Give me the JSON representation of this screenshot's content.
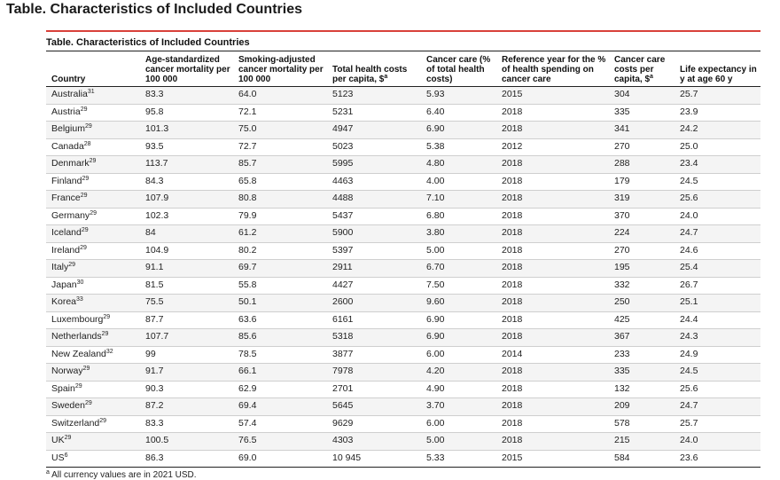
{
  "page_heading": "Table.  Characteristics of Included Countries",
  "table": {
    "caption": "Table. Characteristics of Included Countries",
    "accent_color": "#d9413a",
    "columns": [
      {
        "label": "Country",
        "sup": ""
      },
      {
        "label": "Age-standardized cancer mortality per 100 000",
        "sup": ""
      },
      {
        "label": "Smoking-adjusted cancer mortality per 100 000",
        "sup": ""
      },
      {
        "label": "Total health costs per capita, $",
        "sup": "a"
      },
      {
        "label": "Cancer care (% of total health costs)",
        "sup": ""
      },
      {
        "label": "Reference year for the % of health spending on cancer care",
        "sup": ""
      },
      {
        "label": "Cancer care costs per capita, $",
        "sup": "a"
      },
      {
        "label": "Life expectancy in y at age 60 y",
        "sup": ""
      }
    ],
    "rows": [
      {
        "country": "Australia",
        "ref": "31",
        "mort": "83.3",
        "smoke": "64.0",
        "total": "5123",
        "pct": "5.93",
        "year": "2015",
        "cancer_cost": "304",
        "life": "25.7"
      },
      {
        "country": "Austria",
        "ref": "29",
        "mort": "95.8",
        "smoke": "72.1",
        "total": "5231",
        "pct": "6.40",
        "year": "2018",
        "cancer_cost": "335",
        "life": "23.9"
      },
      {
        "country": "Belgium",
        "ref": "29",
        "mort": "101.3",
        "smoke": "75.0",
        "total": "4947",
        "pct": "6.90",
        "year": "2018",
        "cancer_cost": "341",
        "life": "24.2"
      },
      {
        "country": "Canada",
        "ref": "28",
        "mort": "93.5",
        "smoke": "72.7",
        "total": "5023",
        "pct": "5.38",
        "year": "2012",
        "cancer_cost": "270",
        "life": "25.0"
      },
      {
        "country": "Denmark",
        "ref": "29",
        "mort": "113.7",
        "smoke": "85.7",
        "total": "5995",
        "pct": "4.80",
        "year": "2018",
        "cancer_cost": "288",
        "life": "23.4"
      },
      {
        "country": "Finland",
        "ref": "29",
        "mort": "84.3",
        "smoke": "65.8",
        "total": "4463",
        "pct": "4.00",
        "year": "2018",
        "cancer_cost": "179",
        "life": "24.5"
      },
      {
        "country": "France",
        "ref": "29",
        "mort": "107.9",
        "smoke": "80.8",
        "total": "4488",
        "pct": "7.10",
        "year": "2018",
        "cancer_cost": "319",
        "life": "25.6"
      },
      {
        "country": "Germany",
        "ref": "29",
        "mort": "102.3",
        "smoke": "79.9",
        "total": "5437",
        "pct": "6.80",
        "year": "2018",
        "cancer_cost": "370",
        "life": "24.0"
      },
      {
        "country": "Iceland",
        "ref": "29",
        "mort": "84",
        "smoke": "61.2",
        "total": "5900",
        "pct": "3.80",
        "year": "2018",
        "cancer_cost": "224",
        "life": "24.7"
      },
      {
        "country": "Ireland",
        "ref": "29",
        "mort": "104.9",
        "smoke": "80.2",
        "total": "5397",
        "pct": "5.00",
        "year": "2018",
        "cancer_cost": "270",
        "life": "24.6"
      },
      {
        "country": "Italy",
        "ref": "29",
        "mort": "91.1",
        "smoke": "69.7",
        "total": "2911",
        "pct": "6.70",
        "year": "2018",
        "cancer_cost": "195",
        "life": "25.4"
      },
      {
        "country": "Japan",
        "ref": "30",
        "mort": "81.5",
        "smoke": "55.8",
        "total": "4427",
        "pct": "7.50",
        "year": "2018",
        "cancer_cost": "332",
        "life": "26.7"
      },
      {
        "country": "Korea",
        "ref": "33",
        "mort": "75.5",
        "smoke": "50.1",
        "total": "2600",
        "pct": "9.60",
        "year": "2018",
        "cancer_cost": "250",
        "life": "25.1"
      },
      {
        "country": "Luxembourg",
        "ref": "29",
        "mort": "87.7",
        "smoke": "63.6",
        "total": "6161",
        "pct": "6.90",
        "year": "2018",
        "cancer_cost": "425",
        "life": "24.4"
      },
      {
        "country": "Netherlands",
        "ref": "29",
        "mort": "107.7",
        "smoke": "85.6",
        "total": "5318",
        "pct": "6.90",
        "year": "2018",
        "cancer_cost": "367",
        "life": "24.3"
      },
      {
        "country": "New Zealand",
        "ref": "32",
        "mort": "99",
        "smoke": "78.5",
        "total": "3877",
        "pct": "6.00",
        "year": "2014",
        "cancer_cost": "233",
        "life": "24.9"
      },
      {
        "country": "Norway",
        "ref": "29",
        "mort": "91.7",
        "smoke": "66.1",
        "total": "7978",
        "pct": "4.20",
        "year": "2018",
        "cancer_cost": "335",
        "life": "24.5"
      },
      {
        "country": "Spain",
        "ref": "29",
        "mort": "90.3",
        "smoke": "62.9",
        "total": "2701",
        "pct": "4.90",
        "year": "2018",
        "cancer_cost": "132",
        "life": "25.6"
      },
      {
        "country": "Sweden",
        "ref": "29",
        "mort": "87.2",
        "smoke": "69.4",
        "total": "5645",
        "pct": "3.70",
        "year": "2018",
        "cancer_cost": "209",
        "life": "24.7"
      },
      {
        "country": "Switzerland",
        "ref": "29",
        "mort": "83.3",
        "smoke": "57.4",
        "total": "9629",
        "pct": "6.00",
        "year": "2018",
        "cancer_cost": "578",
        "life": "25.7"
      },
      {
        "country": "UK",
        "ref": "29",
        "mort": "100.5",
        "smoke": "76.5",
        "total": "4303",
        "pct": "5.00",
        "year": "2018",
        "cancer_cost": "215",
        "life": "24.0"
      },
      {
        "country": "US",
        "ref": "6",
        "mort": "86.3",
        "smoke": "69.0",
        "total": "10 945",
        "pct": "5.33",
        "year": "2015",
        "cancer_cost": "584",
        "life": "23.6"
      }
    ],
    "footnote_mark": "a",
    "footnote_text": "All currency values are in 2021 USD."
  }
}
